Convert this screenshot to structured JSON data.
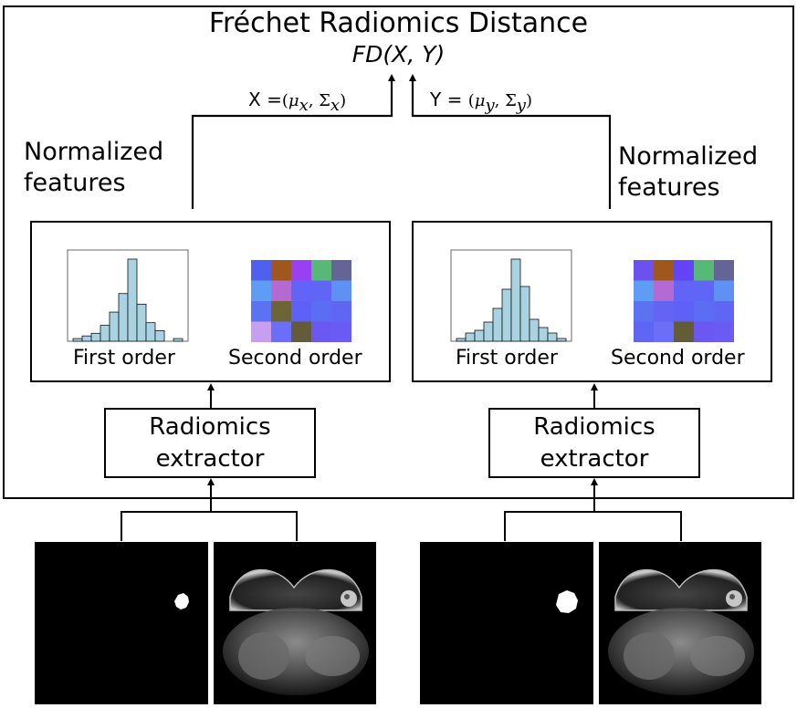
{
  "title": "Fréchet Radiomics Distance",
  "subtitle": "FD(X, Y)",
  "left": {
    "stats_label": {
      "var": "X",
      "eq": "=",
      "mu": "μ",
      "mu_sub": "x",
      "sigma": "Σ",
      "sigma_sub": "x"
    },
    "normalized_label": [
      "Normalized",
      "features"
    ],
    "first_order_label": "First order",
    "second_order_label": "Second order",
    "extractor_label": [
      "Radiomics",
      "extractor"
    ],
    "histogram": [
      1,
      2,
      3,
      6,
      11,
      18,
      31,
      14,
      7,
      4,
      0,
      1
    ],
    "texture": [
      [
        "#4f5ff0",
        "#a0571d",
        "#9a3ff2",
        "#57b877",
        "#646496"
      ],
      [
        "#5f9cf3",
        "#b36ad2",
        "#6164f7",
        "#5f66f6",
        "#5f90f4"
      ],
      [
        "#5b72f1",
        "#6d6438",
        "#5e61f5",
        "#5b6df2",
        "#5e66f3"
      ],
      [
        "#c79ef1",
        "#6b6ef6",
        "#635b3a",
        "#6b57f1",
        "#6a5cf3"
      ]
    ]
  },
  "right": {
    "stats_label": {
      "var": "Y",
      "eq": "=",
      "mu": "μ",
      "mu_sub": "y",
      "sigma": "Σ",
      "sigma_sub": "y"
    },
    "normalized_label": [
      "Normalized",
      "features"
    ],
    "first_order_label": "First order",
    "second_order_label": "Second order",
    "extractor_label": [
      "Radiomics",
      "extractor"
    ],
    "histogram": [
      1,
      3,
      4,
      7,
      12,
      19,
      30,
      20,
      8,
      5,
      3,
      1
    ],
    "texture": [
      [
        "#6b52ee",
        "#a0571d",
        "#6344f6",
        "#57b877",
        "#646496"
      ],
      [
        "#5f9cf3",
        "#b36ad2",
        "#6164f7",
        "#5f66f6",
        "#5f90f4"
      ],
      [
        "#5b72f1",
        "#6364f4",
        "#5e61f5",
        "#5b6df2",
        "#5e66f3"
      ],
      [
        "#5e66f3",
        "#6b6ef6",
        "#635b3a",
        "#6b57f1",
        "#6a5cf3"
      ]
    ]
  }
}
